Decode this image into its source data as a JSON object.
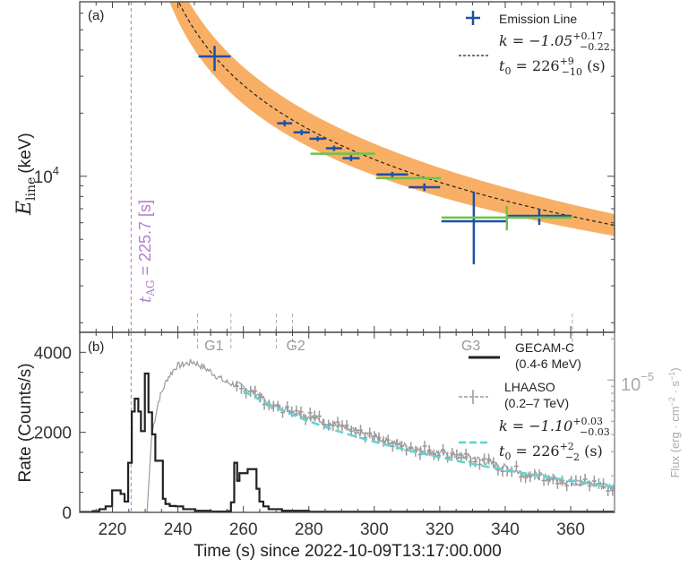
{
  "chart_data": [
    {
      "type": "scatter",
      "panel_label": "(a)",
      "ylabel_main": "E",
      "ylabel_sub": "line",
      "ylabel_unit": "(keV)",
      "yscale": "log",
      "ylim": [
        1800,
        68000
      ],
      "xlim": [
        210,
        373.4
      ],
      "ytick_label_base": "10",
      "ytick_label_exp": "4",
      "ytick_value": 10000,
      "series": [
        {
          "name": "Emission Line",
          "color": "#1f4fa8",
          "x": [
            251.2,
            272.6,
            277.8,
            282.7,
            287.7,
            292.9,
            305.5,
            315.3,
            330.4,
            350.4
          ],
          "xerr": [
            4.9,
            2.3,
            2.5,
            2.5,
            2.5,
            2.6,
            4.8,
            4.8,
            9.9,
            9.9
          ],
          "y": [
            37300,
            17900,
            16200,
            15100,
            13600,
            12200,
            10200,
            8870,
            6100,
            6470
          ],
          "y_low": [
            31800,
            17300,
            15700,
            14700,
            13200,
            11800,
            9900,
            8500,
            3800,
            5860
          ],
          "y_high": [
            41900,
            18500,
            16700,
            15500,
            14000,
            12600,
            10500,
            9250,
            8450,
            7000
          ]
        },
        {
          "color": "#6cc24a",
          "x": [
            290.4,
            310.4,
            340.5
          ],
          "xerr": [
            9.9,
            9.9,
            19.9
          ],
          "y": [
            12800,
            9800,
            6350
          ],
          "y_low": [
            12800,
            9800,
            5520
          ],
          "y_high": [
            12800,
            9800,
            7200
          ]
        }
      ],
      "fit": {
        "color": "#222222",
        "band_color": "#f7a14a",
        "amplitude": 1104000,
        "k": -1.05,
        "t0": 226,
        "legend_k": "k = −1.05",
        "legend_k_sup": "+0.17",
        "legend_k_sub": "−0.22",
        "legend_t0": "t",
        "legend_t0_sub0": "0",
        "legend_t0_eq": " = 226",
        "legend_t0_sup": "+9",
        "legend_t0_sub": "−10",
        "legend_t0_unit": " (s)"
      },
      "afterglow_line": {
        "t": 225.7,
        "color": "#b57ccf",
        "label_t": "t",
        "label_sub": "AG",
        "label_rest": " = 225.7 [s]"
      },
      "legend_placement": "top-right"
    },
    {
      "type": "line",
      "panel_label": "(b)",
      "xlabel": "Time (s) since 2022-10-09T13:17:00.000",
      "xticks": [
        220,
        240,
        260,
        280,
        300,
        320,
        340,
        360
      ],
      "xlim": [
        210,
        373.4
      ],
      "ylabel": "Rate (Counts/s)",
      "ylim": [
        0,
        4500
      ],
      "yticks": [
        0,
        2000,
        4000
      ],
      "ylabel_right": "Flux (erg · cm",
      "ylabel_right_exp1": "−2",
      "ylabel_right_mid": " · s",
      "ylabel_right_exp2": "−1",
      "ylabel_right_end": ")",
      "yscale_right": "log",
      "ylim_right": [
        1.08e-06,
        2.23e-05
      ],
      "ytick_right_base": "10",
      "ytick_right_exp": "−5",
      "ytick_right_value": 1e-05,
      "groups": [
        {
          "label": "G1",
          "t": 251
        },
        {
          "label": "G2",
          "t": 276
        },
        {
          "label": "G3",
          "t": 329.5
        }
      ],
      "group_boundaries": [
        246,
        256.2,
        270.1,
        275,
        360.5
      ],
      "gecam": {
        "name": "GECAM-C",
        "band": "(0.4-6 MeV)",
        "color": "#222222",
        "t_start": [
          210,
          214,
          216,
          217.9,
          219.9,
          222.5,
          223.7,
          224.8,
          225.9,
          226.8,
          227.9,
          228.7,
          229.9,
          231.0,
          232.1,
          233.1,
          235.4,
          236.2,
          237.5,
          239.4,
          241.6,
          245.3,
          250,
          255,
          256.2,
          257.2,
          258.1,
          258.8,
          261.3,
          264.0,
          264.9,
          266.1,
          267.7,
          271.8,
          280
        ],
        "rate": [
          10,
          30,
          80,
          150,
          550,
          460,
          270,
          1240,
          2520,
          2840,
          2520,
          2030,
          3470,
          2500,
          1950,
          1290,
          340,
          210,
          160,
          150,
          80,
          40,
          20,
          30,
          250,
          1240,
          790,
          980,
          1080,
          590,
          270,
          150,
          80,
          40,
          15
        ],
        "t_end": 373.4
      },
      "lhaaso": {
        "name": "LHAASO",
        "band": "(0.2–7 TeV)",
        "color": "#9a9a9a",
        "t": [
          230.5,
          231,
          232,
          234.1,
          236.8,
          239.5,
          244.8,
          249.8,
          254.4,
          259.9,
          265.4,
          267.7,
          271.7,
          276.8,
          285.9,
          295.1,
          304.2,
          313.3,
          322.5,
          330.7,
          344.4,
          358,
          371.8,
          373.4
        ],
        "flux": [
          1e-06,
          1.6e-06,
          4e-06,
          7.1e-06,
          1.03e-05,
          1.26e-05,
          1.36e-05,
          1.16e-05,
          9.7e-06,
          8.9e-06,
          7.6e-06,
          6.6e-06,
          6.3e-06,
          5.7e-06,
          4.84e-06,
          4.15e-06,
          3.57e-06,
          3.11e-06,
          2.84e-06,
          2.68e-06,
          2.13e-06,
          1.83e-06,
          1.67e-06,
          1.65e-06
        ]
      },
      "fit": {
        "color": "#5fd3d3",
        "amplitude": 0.000403,
        "k": -1.1,
        "t0": 226,
        "t_from": 260,
        "legend_k": "k = −1.10",
        "legend_k_sup": "+0.03",
        "legend_k_sub": "−0.03",
        "legend_t0": "t",
        "legend_t0_sub0": "0",
        "legend_t0_eq": " = 226",
        "legend_t0_sup": "+2",
        "legend_t0_sub": "−2",
        "legend_t0_unit": " (s)"
      },
      "legend_placement": "top-right"
    }
  ]
}
